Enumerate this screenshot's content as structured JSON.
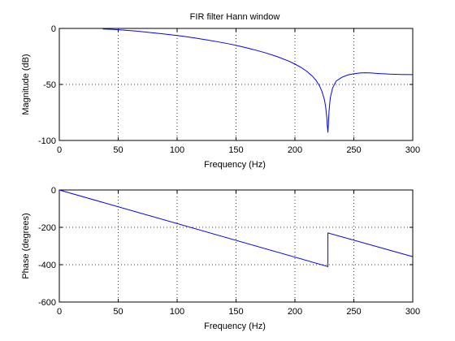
{
  "chart_data": [
    {
      "type": "line",
      "title": "FIR filter Hann window",
      "xlabel": "Frequency (Hz)",
      "ylabel": "Magnitude (dB)",
      "xlim": [
        0,
        300
      ],
      "ylim": [
        -100,
        0
      ],
      "xticks": [
        0,
        50,
        100,
        150,
        200,
        250,
        300
      ],
      "yticks": [
        -100,
        -50,
        0
      ],
      "xtick_labels": [
        "0",
        "50",
        "100",
        "150",
        "200",
        "250",
        "300"
      ],
      "ytick_labels": [
        "-100",
        "-50",
        "0"
      ],
      "grid": true,
      "line_color": "#0000ff",
      "series": [
        {
          "x": [
            37,
            45,
            55,
            65,
            75,
            85,
            95,
            105,
            115,
            125,
            135,
            145,
            155,
            165,
            175,
            185,
            195,
            200,
            205,
            210,
            215,
            218,
            221,
            223,
            225,
            226,
            227,
            227.5,
            228,
            229,
            230,
            232,
            235,
            240,
            245,
            250,
            255,
            260,
            265,
            270,
            280,
            290,
            300
          ],
          "y": [
            -0.5,
            -0.8,
            -1.5,
            -2.4,
            -3.4,
            -4.5,
            -5.7,
            -7.0,
            -8.5,
            -10.2,
            -12.0,
            -14.0,
            -16.3,
            -18.9,
            -21.8,
            -25.2,
            -29.3,
            -31.8,
            -34.7,
            -38.2,
            -42.8,
            -46.5,
            -51.5,
            -56.5,
            -63.5,
            -69.5,
            -79,
            -87,
            -93,
            -73,
            -62,
            -53,
            -47,
            -43.5,
            -41.5,
            -40.5,
            -39.8,
            -39.6,
            -39.8,
            -40.2,
            -40.8,
            -41.1,
            -41.2
          ]
        }
      ]
    },
    {
      "type": "line",
      "title": "",
      "xlabel": "Frequency (Hz)",
      "ylabel": "Phase (degrees)",
      "xlim": [
        0,
        300
      ],
      "ylim": [
        -600,
        0
      ],
      "xticks": [
        0,
        50,
        100,
        150,
        200,
        250,
        300
      ],
      "yticks": [
        -600,
        -400,
        -200,
        0
      ],
      "xtick_labels": [
        "0",
        "50",
        "100",
        "150",
        "200",
        "250",
        "300"
      ],
      "ytick_labels": [
        "-600",
        "-400",
        "-200",
        "0"
      ],
      "grid": true,
      "line_color": "#0000ff",
      "series": [
        {
          "x": [
            0,
            228,
            228,
            300
          ],
          "y": [
            0,
            -410,
            -230,
            -357
          ]
        }
      ]
    }
  ]
}
